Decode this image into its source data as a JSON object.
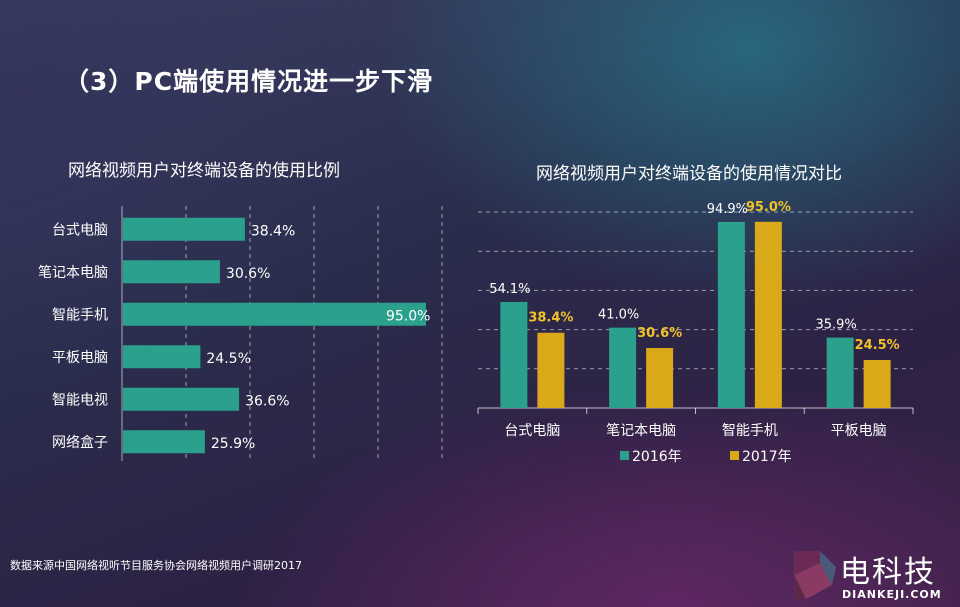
{
  "page": {
    "title": "（3）PC端使用情况进一步下滑",
    "source": "数据来源中国网络视听节目服务协会网络视频用户调研2017"
  },
  "logo": {
    "name": "电科技",
    "subtext": "DIANKEJI.COM"
  },
  "colors": {
    "teal": "#2aa08d",
    "gold": "#d9a91a",
    "gold_label": "#f2c22b"
  },
  "chart_data": [
    {
      "type": "bar",
      "orientation": "horizontal",
      "title": "网络视频用户对终端设备的使用比例",
      "categories": [
        "台式电脑",
        "笔记本电脑",
        "智能手机",
        "平板电脑",
        "智能电视",
        "网络盒子"
      ],
      "values": [
        38.4,
        30.6,
        95.0,
        24.5,
        36.6,
        25.9
      ],
      "labels": [
        "38.4%",
        "30.6%",
        "95.0%",
        "24.5%",
        "36.6%",
        "25.9%"
      ],
      "xlim": [
        0,
        100
      ],
      "grid": "dashed-vertical"
    },
    {
      "type": "bar",
      "orientation": "vertical",
      "title": "网络视频用户对终端设备的使用情况对比",
      "categories": [
        "台式电脑",
        "笔记本电脑",
        "智能手机",
        "平板电脑"
      ],
      "series": [
        {
          "name": "2016年",
          "values": [
            54.1,
            41.0,
            94.9,
            35.9
          ],
          "labels": [
            "54.1%",
            "41.0%",
            "94.9%",
            "35.9%"
          ]
        },
        {
          "name": "2017年",
          "values": [
            38.4,
            30.6,
            95.0,
            24.5
          ],
          "labels": [
            "38.4%",
            "30.6%",
            "95.0%",
            "24.5%"
          ]
        }
      ],
      "ylim": [
        0,
        100
      ],
      "grid": "dashed-horizontal",
      "legend": "bottom"
    }
  ]
}
